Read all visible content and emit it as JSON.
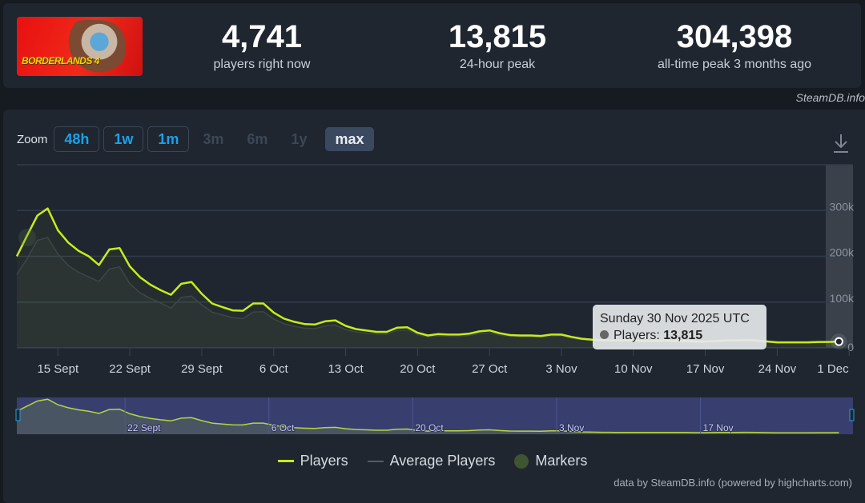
{
  "header": {
    "logo_text": "BORDERLANDS 4",
    "stats": [
      {
        "value": "4,741",
        "label": "players right now"
      },
      {
        "value": "13,815",
        "label": "24-hour peak"
      },
      {
        "value": "304,398",
        "label": "all-time peak 3 months ago"
      }
    ],
    "credit": "SteamDB.info"
  },
  "zoom": {
    "label": "Zoom",
    "buttons": [
      {
        "label": "48h",
        "state": "enabled"
      },
      {
        "label": "1w",
        "state": "enabled"
      },
      {
        "label": "1m",
        "state": "enabled"
      },
      {
        "label": "3m",
        "state": "disabled"
      },
      {
        "label": "6m",
        "state": "disabled"
      },
      {
        "label": "1y",
        "state": "disabled"
      },
      {
        "label": "max",
        "state": "selected"
      }
    ],
    "download_icon": "download-icon"
  },
  "tooltip": {
    "date": "Sunday 30 Nov 2025 UTC",
    "series": "Players:",
    "value": "13,815"
  },
  "legend": {
    "players": "Players",
    "average": "Average Players",
    "markers": "Markers"
  },
  "footer_credit": "data by SteamDB.info (powered by highcharts.com)",
  "colors": {
    "players": "#c6ec1c",
    "average": "#5b626c",
    "navigator_bg": "#383f6e",
    "accent": "#1ea0e8"
  },
  "chart_data": {
    "type": "line",
    "ylim": [
      0,
      400000
    ],
    "y_ticks": [
      "0",
      "100k",
      "200k",
      "300k"
    ],
    "x_ticks": [
      "15 Sept",
      "22 Sept",
      "29 Sept",
      "6 Oct",
      "13 Oct",
      "20 Oct",
      "27 Oct",
      "3 Nov",
      "10 Nov",
      "17 Nov",
      "24 Nov",
      "1 Dec"
    ],
    "navigator_ticks": [
      "22 Sept",
      "6 Oct",
      "20 Oct",
      "3 Nov",
      "17 Nov"
    ],
    "grid": true,
    "legend_position": "bottom",
    "x": [
      "2025-09-11",
      "2025-09-12",
      "2025-09-13",
      "2025-09-14",
      "2025-09-15",
      "2025-09-16",
      "2025-09-17",
      "2025-09-18",
      "2025-09-19",
      "2025-09-20",
      "2025-09-21",
      "2025-09-22",
      "2025-09-23",
      "2025-09-24",
      "2025-09-25",
      "2025-09-26",
      "2025-09-27",
      "2025-09-28",
      "2025-09-29",
      "2025-09-30",
      "2025-10-01",
      "2025-10-02",
      "2025-10-03",
      "2025-10-04",
      "2025-10-05",
      "2025-10-06",
      "2025-10-07",
      "2025-10-08",
      "2025-10-09",
      "2025-10-10",
      "2025-10-11",
      "2025-10-12",
      "2025-10-13",
      "2025-10-14",
      "2025-10-15",
      "2025-10-16",
      "2025-10-17",
      "2025-10-18",
      "2025-10-19",
      "2025-10-20",
      "2025-10-21",
      "2025-10-22",
      "2025-10-23",
      "2025-10-24",
      "2025-10-25",
      "2025-10-26",
      "2025-10-27",
      "2025-10-28",
      "2025-10-29",
      "2025-10-30",
      "2025-10-31",
      "2025-11-01",
      "2025-11-02",
      "2025-11-03",
      "2025-11-04",
      "2025-11-05",
      "2025-11-06",
      "2025-11-07",
      "2025-11-08",
      "2025-11-09",
      "2025-11-10",
      "2025-11-11",
      "2025-11-12",
      "2025-11-13",
      "2025-11-14",
      "2025-11-15",
      "2025-11-16",
      "2025-11-17",
      "2025-11-18",
      "2025-11-19",
      "2025-11-20",
      "2025-11-21",
      "2025-11-22",
      "2025-11-23",
      "2025-11-24",
      "2025-11-25",
      "2025-11-26",
      "2025-11-27",
      "2025-11-28",
      "2025-11-29",
      "2025-11-30"
    ],
    "series": [
      {
        "name": "Players",
        "values": [
          200000,
          245000,
          289000,
          304398,
          257000,
          230000,
          212000,
          200000,
          181000,
          215000,
          218000,
          178000,
          154000,
          138000,
          126000,
          116000,
          140000,
          144000,
          118000,
          97000,
          89000,
          82000,
          81000,
          97000,
          97000,
          77000,
          64000,
          57000,
          52000,
          51000,
          58000,
          60000,
          48000,
          41000,
          38000,
          35000,
          35000,
          44000,
          45000,
          33000,
          27000,
          30000,
          29000,
          29000,
          31000,
          36000,
          38000,
          32000,
          28000,
          27000,
          27000,
          26000,
          29000,
          29000,
          24000,
          20000,
          18000,
          17000,
          16000,
          16000,
          16000,
          15000,
          15000,
          16000,
          15000,
          15000,
          14000,
          14000,
          15000,
          16000,
          16000,
          17000,
          16000,
          14000,
          12000,
          12000,
          12000,
          12000,
          13000,
          13000,
          13815
        ]
      },
      {
        "name": "Average Players",
        "values": [
          160000,
          195000,
          235000,
          241000,
          205000,
          180000,
          165000,
          155000,
          145000,
          172000,
          177000,
          140000,
          120000,
          108000,
          98000,
          87000,
          110000,
          113000,
          94000,
          78000,
          72000,
          66000,
          64000,
          78000,
          79000,
          63000,
          53000,
          47000,
          43000,
          42000,
          48000,
          50000,
          40000,
          35000,
          32000,
          30000,
          30000,
          38000,
          39000,
          29000,
          24000,
          26000,
          25000,
          25000,
          27000,
          31000,
          33000,
          28000,
          25000,
          24000,
          24000,
          23000,
          25000,
          26000,
          21000,
          18000,
          16000,
          15000,
          14000,
          14000,
          14000,
          13000,
          13000,
          14000,
          13000,
          13000,
          12000,
          12000,
          13000,
          14000,
          14000,
          15000,
          14000,
          12000,
          11000,
          11000,
          11000,
          11000,
          11000,
          12000,
          12000
        ]
      }
    ]
  }
}
